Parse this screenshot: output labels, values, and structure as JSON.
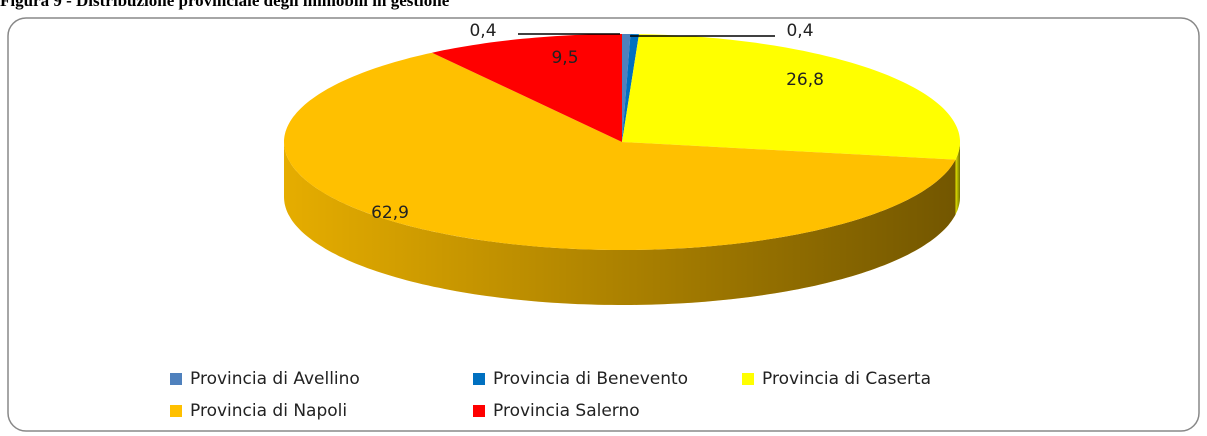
{
  "chart_data": {
    "type": "pie3d",
    "title": "Figura 9 - Distribuzione provinciale degli immobili in gestione",
    "categories": [
      "Provincia di Avellino",
      "Provincia di Benevento",
      "Provincia di Caserta",
      "Provincia di Napoli",
      "Provincia Salerno"
    ],
    "values": [
      0.4,
      0.4,
      26.8,
      62.9,
      9.5
    ],
    "value_labels": [
      "0,4",
      "0,4",
      "26,8",
      "62,9",
      "9,5"
    ],
    "colors": [
      "#4f81bd",
      "#0070c0",
      "#ffff00",
      "#ffc000",
      "#ff0000"
    ],
    "legend": "bottom"
  }
}
